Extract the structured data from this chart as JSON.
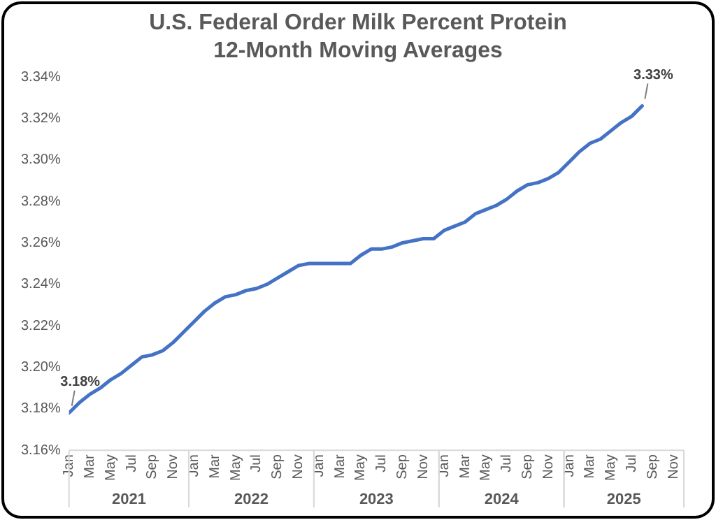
{
  "chart_data": {
    "type": "line",
    "title": "U.S. Federal Order Milk Percent Protein",
    "subtitle": "12-Month Moving Averages",
    "x": [
      "2021-01",
      "2021-02",
      "2021-03",
      "2021-04",
      "2021-05",
      "2021-06",
      "2021-07",
      "2021-08",
      "2021-09",
      "2021-10",
      "2021-11",
      "2021-12",
      "2022-01",
      "2022-02",
      "2022-03",
      "2022-04",
      "2022-05",
      "2022-06",
      "2022-07",
      "2022-08",
      "2022-09",
      "2022-10",
      "2022-11",
      "2022-12",
      "2023-01",
      "2023-02",
      "2023-03",
      "2023-04",
      "2023-05",
      "2023-06",
      "2023-07",
      "2023-08",
      "2023-09",
      "2023-10",
      "2023-11",
      "2023-12",
      "2024-01",
      "2024-02",
      "2024-03",
      "2024-04",
      "2024-05",
      "2024-06",
      "2024-07",
      "2024-08",
      "2024-09",
      "2024-10",
      "2024-11",
      "2024-12",
      "2025-01",
      "2025-02",
      "2025-03",
      "2025-04",
      "2025-05",
      "2025-06",
      "2025-07",
      "2025-08"
    ],
    "series": [
      {
        "color": "#4472c4",
        "values": [
          3.178,
          3.183,
          3.187,
          3.19,
          3.194,
          3.197,
          3.201,
          3.205,
          3.206,
          3.208,
          3.212,
          3.217,
          3.222,
          3.227,
          3.231,
          3.234,
          3.235,
          3.237,
          3.238,
          3.24,
          3.243,
          3.246,
          3.249,
          3.25,
          3.25,
          3.25,
          3.25,
          3.25,
          3.254,
          3.257,
          3.257,
          3.258,
          3.26,
          3.261,
          3.262,
          3.262,
          3.266,
          3.268,
          3.27,
          3.274,
          3.276,
          3.278,
          3.281,
          3.285,
          3.288,
          3.289,
          3.291,
          3.294,
          3.299,
          3.304,
          3.308,
          3.31,
          3.314,
          3.318,
          3.321,
          3.326
        ],
        "value_labels": [
          "3.18%",
          null,
          null,
          null,
          null,
          null,
          null,
          null,
          null,
          null,
          null,
          null,
          null,
          null,
          null,
          null,
          null,
          null,
          null,
          null,
          null,
          null,
          null,
          null,
          null,
          null,
          null,
          null,
          null,
          null,
          null,
          null,
          null,
          null,
          null,
          null,
          null,
          null,
          null,
          null,
          null,
          null,
          null,
          null,
          null,
          null,
          null,
          null,
          null,
          null,
          null,
          null,
          null,
          null,
          null,
          "3.33%"
        ]
      }
    ],
    "xlim": [
      "2021-01",
      "2025-12"
    ],
    "xticks": [
      {
        "value": "2021-01",
        "label": "Jan"
      },
      {
        "value": "2021-03",
        "label": "Mar"
      },
      {
        "value": "2021-05",
        "label": "May"
      },
      {
        "value": "2021-07",
        "label": "Jul"
      },
      {
        "value": "2021-09",
        "label": "Sep"
      },
      {
        "value": "2021-11",
        "label": "Nov"
      },
      {
        "value": "2022-01",
        "label": "Jan"
      },
      {
        "value": "2022-03",
        "label": "Mar"
      },
      {
        "value": "2022-05",
        "label": "May"
      },
      {
        "value": "2022-07",
        "label": "Jul"
      },
      {
        "value": "2022-09",
        "label": "Sep"
      },
      {
        "value": "2022-11",
        "label": "Nov"
      },
      {
        "value": "2023-01",
        "label": "Jan"
      },
      {
        "value": "2023-03",
        "label": "Mar"
      },
      {
        "value": "2023-05",
        "label": "May"
      },
      {
        "value": "2023-07",
        "label": "Jul"
      },
      {
        "value": "2023-09",
        "label": "Sep"
      },
      {
        "value": "2023-11",
        "label": "Nov"
      },
      {
        "value": "2024-01",
        "label": "Jan"
      },
      {
        "value": "2024-03",
        "label": "Mar"
      },
      {
        "value": "2024-05",
        "label": "May"
      },
      {
        "value": "2024-07",
        "label": "Jul"
      },
      {
        "value": "2024-09",
        "label": "Sep"
      },
      {
        "value": "2024-11",
        "label": "Nov"
      },
      {
        "value": "2025-01",
        "label": "Jan"
      },
      {
        "value": "2025-03",
        "label": "Mar"
      },
      {
        "value": "2025-05",
        "label": "May"
      },
      {
        "value": "2025-07",
        "label": "Jul"
      },
      {
        "value": "2025-09",
        "label": "Sep"
      },
      {
        "value": "2025-11",
        "label": "Nov"
      }
    ],
    "ylim": [
      3.16,
      3.34
    ],
    "yticks": [
      {
        "value": 3.16,
        "label": "3.16%"
      },
      {
        "value": 3.18,
        "label": "3.18%"
      },
      {
        "value": 3.2,
        "label": "3.20%"
      },
      {
        "value": 3.22,
        "label": "3.22%"
      },
      {
        "value": 3.24,
        "label": "3.24%"
      },
      {
        "value": 3.26,
        "label": "3.26%"
      },
      {
        "value": 3.28,
        "label": "3.28%"
      },
      {
        "value": 3.3,
        "label": "3.30%"
      },
      {
        "value": 3.32,
        "label": "3.32%"
      },
      {
        "value": 3.34,
        "label": "3.34%"
      }
    ],
    "annotations": [
      "2021",
      "2022",
      "2023",
      "2024",
      "2025"
    ],
    "grid": false,
    "legend": false,
    "marker": "none",
    "line_style": "solid"
  }
}
